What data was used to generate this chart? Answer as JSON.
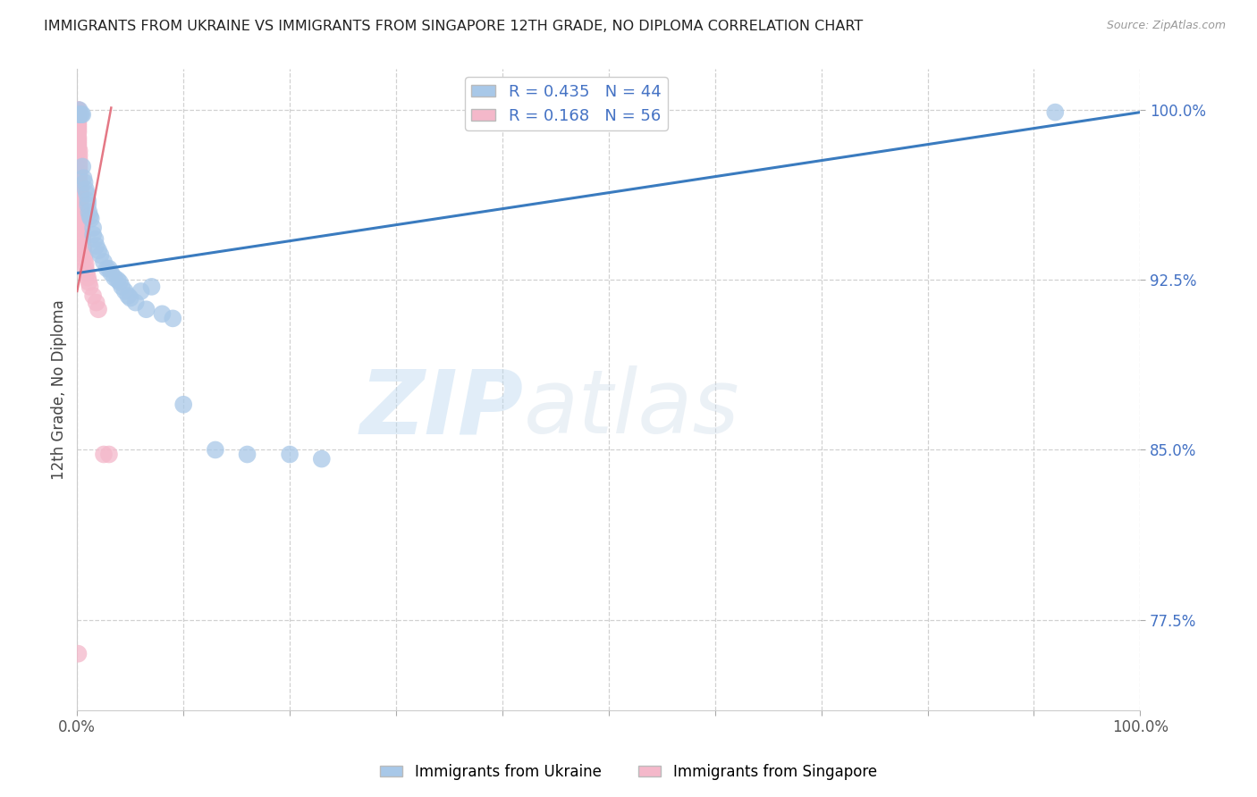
{
  "title": "IMMIGRANTS FROM UKRAINE VS IMMIGRANTS FROM SINGAPORE 12TH GRADE, NO DIPLOMA CORRELATION CHART",
  "source": "Source: ZipAtlas.com",
  "ylabel": "12th Grade, No Diploma",
  "ytick_labels": [
    "100.0%",
    "92.5%",
    "85.0%",
    "77.5%"
  ],
  "ytick_values": [
    1.0,
    0.925,
    0.85,
    0.775
  ],
  "xlim": [
    0.0,
    1.0
  ],
  "ylim": [
    0.735,
    1.018
  ],
  "R_ukraine": 0.435,
  "N_ukraine": 44,
  "R_singapore": 0.168,
  "N_singapore": 56,
  "color_ukraine": "#a8c8e8",
  "color_singapore": "#f4b8ca",
  "trendline_ukraine_color": "#3a7bbf",
  "trendline_singapore_color": "#e06070",
  "legend_label_ukraine": "Immigrants from Ukraine",
  "legend_label_singapore": "Immigrants from Singapore",
  "watermark_zip": "ZIP",
  "watermark_atlas": "atlas",
  "ukraine_x": [
    0.002,
    0.002,
    0.003,
    0.004,
    0.005,
    0.005,
    0.006,
    0.007,
    0.008,
    0.009,
    0.01,
    0.01,
    0.011,
    0.012,
    0.013,
    0.015,
    0.015,
    0.017,
    0.018,
    0.02,
    0.022,
    0.025,
    0.028,
    0.03,
    0.032,
    0.035,
    0.038,
    0.04,
    0.042,
    0.045,
    0.048,
    0.05,
    0.055,
    0.06,
    0.065,
    0.07,
    0.08,
    0.09,
    0.1,
    0.13,
    0.16,
    0.2,
    0.23,
    0.92
  ],
  "ukraine_y": [
    1.0,
    0.998,
    0.998,
    0.998,
    0.998,
    0.975,
    0.97,
    0.968,
    0.965,
    0.963,
    0.96,
    0.958,
    0.955,
    0.953,
    0.952,
    0.948,
    0.945,
    0.943,
    0.94,
    0.938,
    0.936,
    0.933,
    0.93,
    0.93,
    0.928,
    0.926,
    0.925,
    0.924,
    0.922,
    0.92,
    0.918,
    0.917,
    0.915,
    0.92,
    0.912,
    0.922,
    0.91,
    0.908,
    0.87,
    0.85,
    0.848,
    0.848,
    0.846,
    0.999
  ],
  "singapore_x": [
    0.001,
    0.001,
    0.001,
    0.001,
    0.001,
    0.001,
    0.001,
    0.001,
    0.001,
    0.001,
    0.001,
    0.001,
    0.001,
    0.001,
    0.001,
    0.001,
    0.001,
    0.001,
    0.001,
    0.002,
    0.002,
    0.002,
    0.002,
    0.002,
    0.002,
    0.002,
    0.002,
    0.003,
    0.003,
    0.003,
    0.003,
    0.003,
    0.003,
    0.004,
    0.004,
    0.004,
    0.004,
    0.005,
    0.005,
    0.005,
    0.006,
    0.006,
    0.007,
    0.007,
    0.008,
    0.008,
    0.009,
    0.01,
    0.011,
    0.012,
    0.015,
    0.018,
    0.02,
    0.025,
    0.03,
    0.001
  ],
  "singapore_y": [
    1.0,
    1.0,
    0.999,
    0.999,
    0.998,
    0.997,
    0.996,
    0.995,
    0.994,
    0.993,
    0.992,
    0.991,
    0.99,
    0.988,
    0.987,
    0.986,
    0.985,
    0.984,
    0.983,
    0.982,
    0.98,
    0.978,
    0.976,
    0.974,
    0.972,
    0.97,
    0.968,
    0.966,
    0.964,
    0.962,
    0.96,
    0.958,
    0.956,
    0.954,
    0.952,
    0.95,
    0.948,
    0.946,
    0.944,
    0.942,
    0.94,
    0.938,
    0.936,
    0.934,
    0.932,
    0.93,
    0.928,
    0.926,
    0.924,
    0.922,
    0.918,
    0.915,
    0.912,
    0.848,
    0.848,
    0.76
  ],
  "ukraine_trend_x": [
    0.0,
    1.0
  ],
  "ukraine_trend_y": [
    0.928,
    0.999
  ],
  "singapore_trend_x": [
    0.0,
    0.032
  ],
  "singapore_trend_y": [
    0.92,
    1.001
  ]
}
